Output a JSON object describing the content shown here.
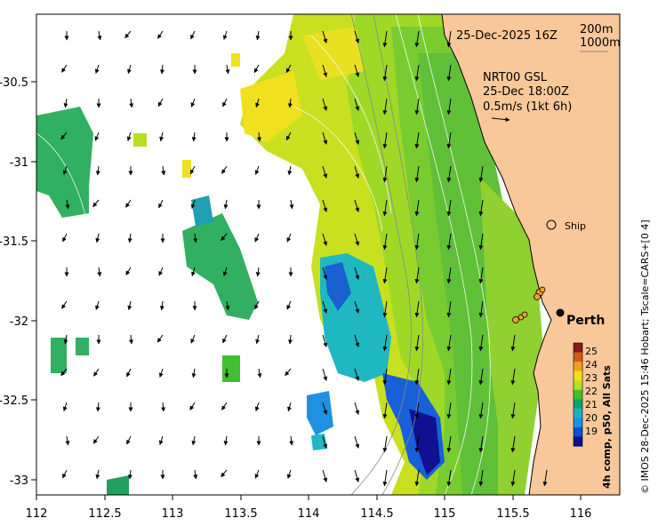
{
  "map": {
    "date_label": "25-Dec-2025 16Z",
    "contour_labels": [
      "200m",
      "1000m"
    ],
    "current_model": "NRT00 GSL",
    "current_time": "25-Dec 18:00Z",
    "current_scale": "0.5m/s (1kt 6h)",
    "ship_label": "Ship",
    "city_label": "Perth",
    "credit": "© IMOS 28-Dec-2025 15:46 Hobart; Tscale=CARS+[0 4]",
    "colorbar_title": "4h comp, p50, All Sats",
    "colorbar_ticks": [
      "25",
      "24",
      "23",
      "22",
      "21",
      "20",
      "19"
    ],
    "colorbar_colors": [
      "#8b1a1a",
      "#d05a1a",
      "#f0a020",
      "#f5e020",
      "#b8e020",
      "#40c030",
      "#10a070",
      "#20b0c0",
      "#2090e0",
      "#1050d0",
      "#101090"
    ],
    "x_ticks": [
      "112",
      "112.5",
      "113",
      "113.5",
      "114",
      "114.5",
      "115",
      "115.5",
      "116"
    ],
    "y_ticks": [
      "-30.5",
      "-31",
      "-31.5",
      "-32",
      "-32.5",
      "-33"
    ],
    "colors": {
      "land": "#f9c89a",
      "ocean": "#ffffff"
    }
  }
}
